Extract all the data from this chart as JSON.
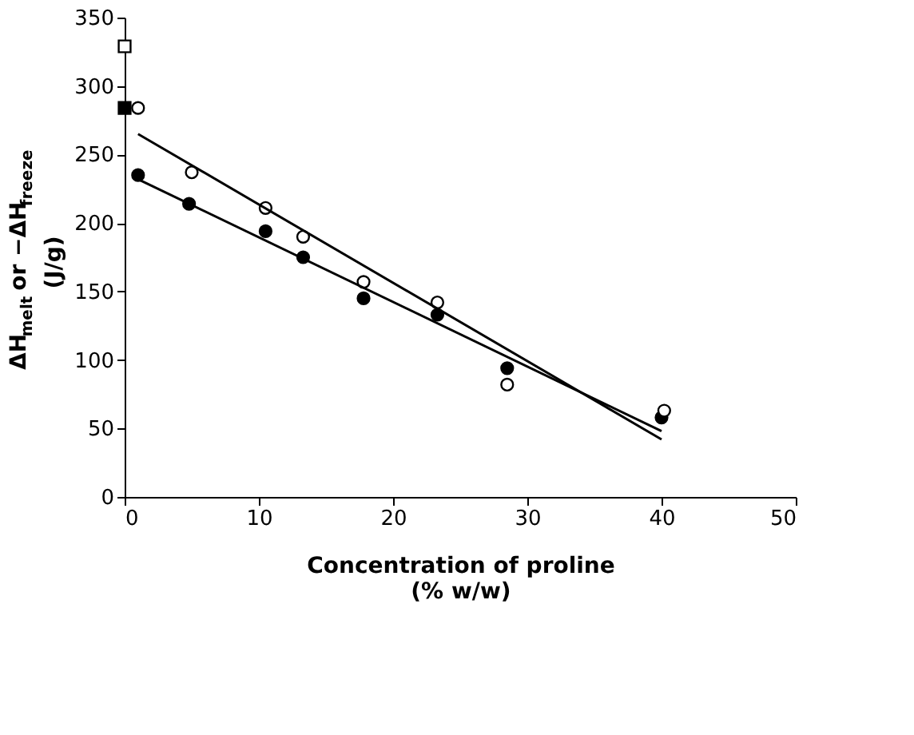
{
  "chart_data": {
    "type": "scatter",
    "xlabel": "Concentration of proline\n(% w/w)",
    "ylabel": "ΔH$_{melt}$ or −ΔH$_{freeze}$\n(J/g)",
    "xlim": [
      0,
      50
    ],
    "xticks": [
      0,
      10,
      20,
      30,
      40,
      50
    ],
    "ylim": [
      0,
      350
    ],
    "yticks": [
      0,
      50,
      100,
      150,
      200,
      250,
      300,
      350
    ],
    "grid": false,
    "series": [
      {
        "marker": "circle",
        "color": "#000000",
        "x": [
          1,
          4.8,
          10.5,
          13.3,
          17.8,
          23.3,
          28.5,
          40
        ],
        "values": [
          235,
          214,
          194,
          175,
          145,
          133,
          94,
          58
        ]
      },
      {
        "marker": "circle",
        "color": "#ffffff",
        "x": [
          1,
          5,
          10.5,
          13.3,
          17.8,
          23.3,
          28.5,
          40.2
        ],
        "values": [
          284,
          237,
          211,
          190,
          157,
          142,
          82,
          63
        ]
      },
      {
        "marker": "square",
        "color": "#ffffff",
        "x": [
          0
        ],
        "values": [
          329
        ]
      },
      {
        "marker": "square",
        "color": "#000000",
        "x": [
          0
        ],
        "values": [
          284
        ]
      },
      {
        "type": "line",
        "color": "#000000",
        "x": [
          1,
          40
        ],
        "values": [
          265,
          42
        ]
      },
      {
        "type": "line",
        "color": "#000000",
        "x": [
          1,
          40
        ],
        "values": [
          232,
          48
        ]
      }
    ]
  }
}
